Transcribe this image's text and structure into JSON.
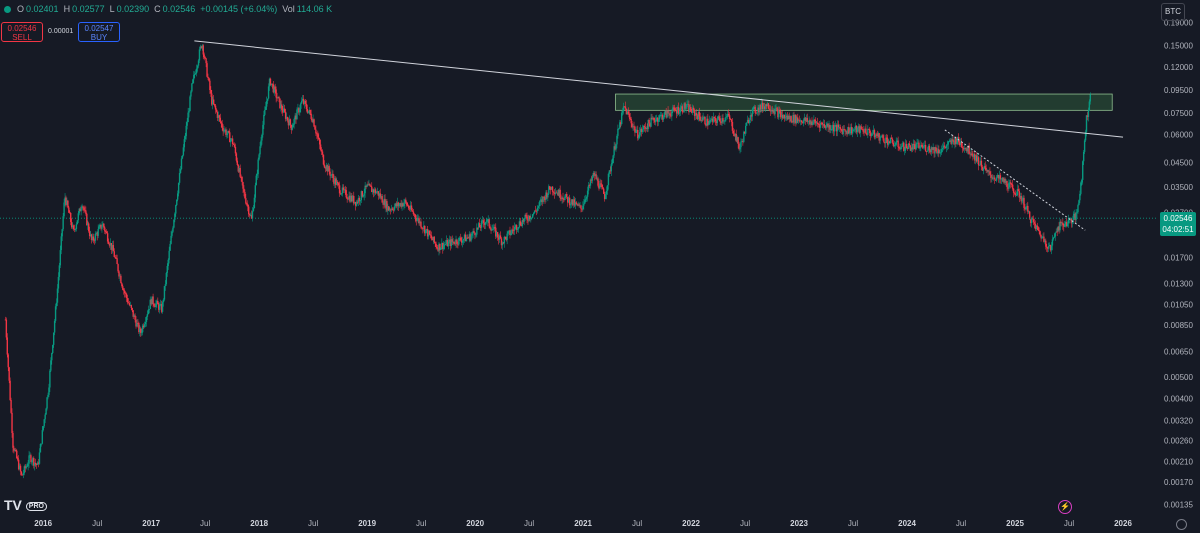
{
  "ohlc": {
    "o_label": "O",
    "o": "0.02401",
    "h_label": "H",
    "h": "0.02577",
    "l_label": "L",
    "l": "0.02390",
    "c_label": "C",
    "c": "0.02546",
    "change": "+0.00145 (+6.04%)",
    "vol_label": "Vol",
    "vol": "114.06 K"
  },
  "trade": {
    "sell_price": "0.02546",
    "sell_label": "SELL",
    "spread": "0.00001",
    "buy_price": "0.02547",
    "buy_label": "BUY"
  },
  "symbol": "BTC",
  "current": {
    "price": "0.02546",
    "countdown": "04:02:51"
  },
  "logo": {
    "text": "TV",
    "badge": "PRO"
  },
  "icons": {
    "gear": "settings-gear-icon",
    "flash": "lightning-icon"
  },
  "colors": {
    "background": "#161a25",
    "up": "#089981",
    "down": "#f23645",
    "zone": "#2e5a3a",
    "line": "#d1d4dc",
    "axis_text": "#b2b5be"
  },
  "chart_data": {
    "type": "candlestick",
    "title": "",
    "scale": "log",
    "grid": false,
    "ylim": [
      0.00125,
      0.22
    ],
    "xlim": [
      2015.6,
      2026.25
    ],
    "y_ticks": [
      "0.19000",
      "0.15000",
      "0.12000",
      "0.09500",
      "0.07500",
      "0.06000",
      "0.04500",
      "0.03500",
      "0.02700",
      "0.02200",
      "0.01700",
      "0.01300",
      "0.01050",
      "0.00850",
      "0.00650",
      "0.00500",
      "0.00400",
      "0.00320",
      "0.00260",
      "0.00210",
      "0.00170",
      "0.00135"
    ],
    "x_ticks": [
      {
        "label": "2016",
        "t": 2016.0
      },
      {
        "label": "Jul",
        "t": 2016.5
      },
      {
        "label": "2017",
        "t": 2017.0
      },
      {
        "label": "Jul",
        "t": 2017.5
      },
      {
        "label": "2018",
        "t": 2018.0
      },
      {
        "label": "Jul",
        "t": 2018.5
      },
      {
        "label": "2019",
        "t": 2019.0
      },
      {
        "label": "Jul",
        "t": 2019.5
      },
      {
        "label": "2020",
        "t": 2020.0
      },
      {
        "label": "Jul",
        "t": 2020.5
      },
      {
        "label": "2021",
        "t": 2021.0
      },
      {
        "label": "Jul",
        "t": 2021.5
      },
      {
        "label": "2022",
        "t": 2022.0
      },
      {
        "label": "Jul",
        "t": 2022.5
      },
      {
        "label": "2023",
        "t": 2023.0
      },
      {
        "label": "Jul",
        "t": 2023.5
      },
      {
        "label": "2024",
        "t": 2024.0
      },
      {
        "label": "Jul",
        "t": 2024.5
      },
      {
        "label": "2025",
        "t": 2025.0
      },
      {
        "label": "Jul",
        "t": 2025.5
      },
      {
        "label": "2026",
        "t": 2026.0
      }
    ],
    "price_path": [
      [
        2015.65,
        0.009
      ],
      [
        2015.72,
        0.0025
      ],
      [
        2015.8,
        0.0018
      ],
      [
        2015.88,
        0.0022
      ],
      [
        2015.95,
        0.002
      ],
      [
        2016.05,
        0.0045
      ],
      [
        2016.13,
        0.012
      ],
      [
        2016.2,
        0.032
      ],
      [
        2016.28,
        0.022
      ],
      [
        2016.36,
        0.03
      ],
      [
        2016.45,
        0.02
      ],
      [
        2016.55,
        0.024
      ],
      [
        2016.65,
        0.018
      ],
      [
        2016.75,
        0.012
      ],
      [
        2016.9,
        0.0078
      ],
      [
        2017.0,
        0.011
      ],
      [
        2017.1,
        0.01
      ],
      [
        2017.18,
        0.02
      ],
      [
        2017.28,
        0.045
      ],
      [
        2017.38,
        0.1
      ],
      [
        2017.47,
        0.155
      ],
      [
        2017.56,
        0.085
      ],
      [
        2017.66,
        0.065
      ],
      [
        2017.76,
        0.055
      ],
      [
        2017.85,
        0.034
      ],
      [
        2017.93,
        0.025
      ],
      [
        2018.02,
        0.06
      ],
      [
        2018.1,
        0.105
      ],
      [
        2018.2,
        0.08
      ],
      [
        2018.3,
        0.065
      ],
      [
        2018.4,
        0.085
      ],
      [
        2018.5,
        0.07
      ],
      [
        2018.6,
        0.045
      ],
      [
        2018.75,
        0.034
      ],
      [
        2018.9,
        0.03
      ],
      [
        2019.0,
        0.035
      ],
      [
        2019.1,
        0.033
      ],
      [
        2019.2,
        0.028
      ],
      [
        2019.35,
        0.03
      ],
      [
        2019.5,
        0.024
      ],
      [
        2019.65,
        0.019
      ],
      [
        2019.8,
        0.02
      ],
      [
        2019.95,
        0.021
      ],
      [
        2020.1,
        0.025
      ],
      [
        2020.25,
        0.02
      ],
      [
        2020.4,
        0.024
      ],
      [
        2020.55,
        0.027
      ],
      [
        2020.7,
        0.035
      ],
      [
        2020.85,
        0.031
      ],
      [
        2020.98,
        0.028
      ],
      [
        2021.1,
        0.04
      ],
      [
        2021.2,
        0.032
      ],
      [
        2021.3,
        0.055
      ],
      [
        2021.38,
        0.08
      ],
      [
        2021.5,
        0.06
      ],
      [
        2021.65,
        0.07
      ],
      [
        2021.8,
        0.075
      ],
      [
        2021.95,
        0.08
      ],
      [
        2022.15,
        0.068
      ],
      [
        2022.35,
        0.072
      ],
      [
        2022.45,
        0.052
      ],
      [
        2022.55,
        0.075
      ],
      [
        2022.7,
        0.082
      ],
      [
        2022.85,
        0.072
      ],
      [
        2023.0,
        0.07
      ],
      [
        2023.2,
        0.067
      ],
      [
        2023.4,
        0.063
      ],
      [
        2023.6,
        0.063
      ],
      [
        2023.8,
        0.057
      ],
      [
        2023.95,
        0.053
      ],
      [
        2024.15,
        0.053
      ],
      [
        2024.3,
        0.051
      ],
      [
        2024.45,
        0.057
      ],
      [
        2024.6,
        0.05
      ],
      [
        2024.75,
        0.04
      ],
      [
        2024.9,
        0.037
      ],
      [
        2025.05,
        0.032
      ],
      [
        2025.15,
        0.025
      ],
      [
        2025.25,
        0.021
      ],
      [
        2025.33,
        0.0185
      ],
      [
        2025.38,
        0.023
      ],
      [
        2025.45,
        0.024
      ],
      [
        2025.52,
        0.025
      ],
      [
        2025.57,
        0.026
      ],
      [
        2025.62,
        0.04
      ],
      [
        2025.66,
        0.07
      ],
      [
        2025.7,
        0.09
      ]
    ],
    "resistance_zone": {
      "t0": 2021.3,
      "t1": 2025.9,
      "y0": 0.077,
      "y1": 0.091
    },
    "trendlines": [
      {
        "t0": 2017.4,
        "y0": 0.157,
        "t1": 2026.0,
        "y1": 0.0585,
        "style": "solid"
      },
      {
        "t0": 2024.35,
        "y0": 0.063,
        "t1": 2025.65,
        "y1": 0.0225,
        "style": "dotted"
      }
    ],
    "current_line": 0.02546
  }
}
